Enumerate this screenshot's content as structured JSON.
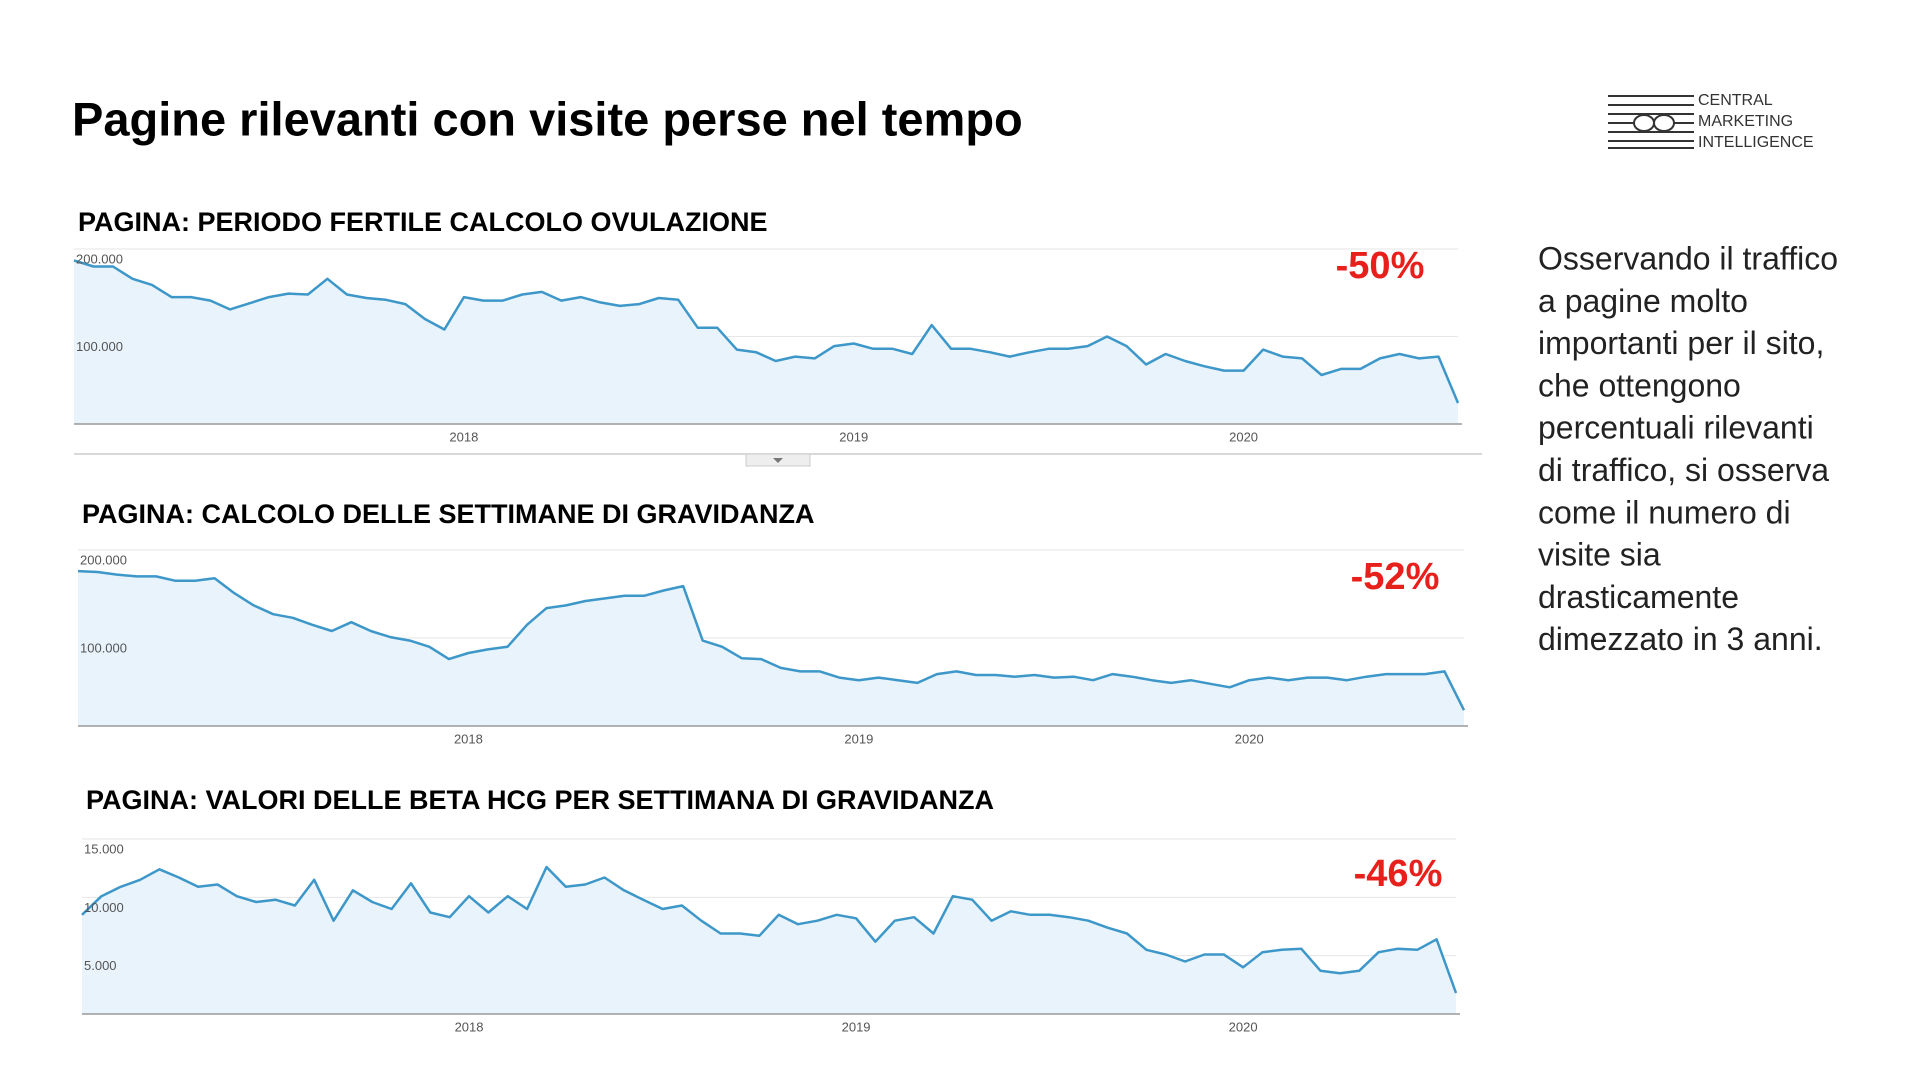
{
  "slide": {
    "title": "Pagine rilevanti con visite perse nel tempo",
    "logo": [
      "CENTRAL",
      "MARKETING",
      "INTELLIGENCE"
    ],
    "body": [
      "Osservando il traffico",
      "a pagine molto",
      "importanti per il sito,",
      "che ottengono",
      "percentuali rilevanti",
      "di traffico, si osserva",
      "come il numero di",
      "visite sia",
      "drasticamente",
      "dimezzato in 3 anni."
    ]
  },
  "chart_data": [
    {
      "type": "line",
      "title": "PAGINA: PERIODO FERTILE CALCOLO OVULAZIONE",
      "annotation": "-50%",
      "color": "#3d97c9",
      "area_color": "#e9f3fb",
      "grid": true,
      "categories": [
        null,
        null,
        null,
        null,
        null,
        null,
        null,
        null,
        null,
        null,
        null,
        null,
        null,
        null,
        null,
        null,
        null,
        null,
        null,
        null,
        "2018",
        null,
        null,
        null,
        null,
        null,
        null,
        null,
        null,
        null,
        null,
        null,
        null,
        null,
        null,
        null,
        null,
        null,
        null,
        null,
        "2019",
        null,
        null,
        null,
        null,
        null,
        null,
        null,
        null,
        null,
        null,
        null,
        null,
        null,
        null,
        null,
        null,
        null,
        null,
        null,
        "2020",
        null,
        null,
        null,
        null,
        null,
        null,
        null,
        null,
        null,
        null,
        null
      ],
      "values": [
        187000,
        180000,
        180000,
        166000,
        159000,
        145000,
        145000,
        141000,
        131000,
        138000,
        145000,
        149000,
        148000,
        166000,
        148000,
        144000,
        142000,
        137000,
        120000,
        108000,
        145000,
        141000,
        141000,
        148000,
        151000,
        141000,
        145000,
        139000,
        135000,
        137000,
        144000,
        142000,
        110000,
        110000,
        85000,
        82000,
        72000,
        77000,
        75000,
        89000,
        92000,
        86000,
        86000,
        80000,
        113000,
        86000,
        86000,
        82000,
        77000,
        82000,
        86000,
        86000,
        89000,
        100000,
        89000,
        68000,
        80000,
        72000,
        66000,
        61000,
        61000,
        85000,
        77000,
        75000,
        56000,
        63000,
        63000,
        75000,
        80000,
        75000,
        77000,
        24000
      ],
      "ylim": [
        0,
        200000
      ],
      "yticks": [
        {
          "value": 100000,
          "label": "100.000"
        },
        {
          "value": 200000,
          "label": "200.000"
        }
      ]
    },
    {
      "type": "line",
      "title": "PAGINA: CALCOLO DELLE SETTIMANE DI GRAVIDANZA",
      "annotation": "-52%",
      "color": "#3d97c9",
      "area_color": "#e9f3fb",
      "grid": true,
      "categories": [
        null,
        null,
        null,
        null,
        null,
        null,
        null,
        null,
        null,
        null,
        null,
        null,
        null,
        null,
        null,
        null,
        null,
        null,
        null,
        null,
        "2018",
        null,
        null,
        null,
        null,
        null,
        null,
        null,
        null,
        null,
        null,
        null,
        null,
        null,
        null,
        null,
        null,
        null,
        null,
        null,
        "2019",
        null,
        null,
        null,
        null,
        null,
        null,
        null,
        null,
        null,
        null,
        null,
        null,
        null,
        null,
        null,
        null,
        null,
        null,
        null,
        "2020",
        null,
        null,
        null,
        null,
        null,
        null,
        null,
        null,
        null,
        null,
        null
      ],
      "values": [
        176000,
        175000,
        172000,
        170000,
        170000,
        165000,
        165000,
        168000,
        151000,
        137000,
        127000,
        123000,
        115000,
        108000,
        118000,
        108000,
        101000,
        97000,
        90000,
        76000,
        83000,
        87000,
        90000,
        115000,
        134000,
        137000,
        142000,
        145000,
        148000,
        148000,
        154000,
        159000,
        97000,
        90000,
        77000,
        76000,
        66000,
        62000,
        62000,
        55000,
        52000,
        55000,
        52000,
        49000,
        59000,
        62000,
        58000,
        58000,
        56000,
        58000,
        55000,
        56000,
        52000,
        59000,
        56000,
        52000,
        49000,
        52000,
        48000,
        44000,
        52000,
        55000,
        52000,
        55000,
        55000,
        52000,
        56000,
        59000,
        59000,
        59000,
        62000,
        18000
      ],
      "ylim": [
        0,
        200000
      ],
      "yticks": [
        {
          "value": 100000,
          "label": "100.000"
        },
        {
          "value": 200000,
          "label": "200.000"
        }
      ]
    },
    {
      "type": "line",
      "title": "PAGINA: VALORI DELLE BETA HCG PER SETTIMANA DI GRAVIDANZA",
      "annotation": "-46%",
      "color": "#3d97c9",
      "area_color": "#e9f3fb",
      "grid": true,
      "categories": [
        null,
        null,
        null,
        null,
        null,
        null,
        null,
        null,
        null,
        null,
        null,
        null,
        null,
        null,
        null,
        null,
        null,
        null,
        null,
        null,
        "2018",
        null,
        null,
        null,
        null,
        null,
        null,
        null,
        null,
        null,
        null,
        null,
        null,
        null,
        null,
        null,
        null,
        null,
        null,
        null,
        "2019",
        null,
        null,
        null,
        null,
        null,
        null,
        null,
        null,
        null,
        null,
        null,
        null,
        null,
        null,
        null,
        null,
        null,
        null,
        null,
        "2020",
        null,
        null,
        null,
        null,
        null,
        null,
        null,
        null,
        null,
        null,
        null
      ],
      "values": [
        8500,
        10100,
        10900,
        11500,
        12400,
        11700,
        10900,
        11100,
        10100,
        9600,
        9800,
        9300,
        11500,
        8000,
        10600,
        9600,
        9000,
        11200,
        8700,
        8300,
        10100,
        8700,
        10100,
        9000,
        12600,
        10900,
        11100,
        11700,
        10600,
        9800,
        9000,
        9300,
        8000,
        6900,
        6900,
        6700,
        8500,
        7700,
        8000,
        8500,
        8200,
        6200,
        8000,
        8300,
        6900,
        10100,
        9800,
        8000,
        8800,
        8500,
        8500,
        8300,
        8000,
        7400,
        6900,
        5500,
        5100,
        4500,
        5100,
        5100,
        4000,
        5300,
        5500,
        5600,
        3700,
        3500,
        3700,
        5300,
        5600,
        5500,
        6400,
        1800
      ],
      "ylim": [
        0,
        15000
      ],
      "yticks": [
        {
          "value": 5000,
          "label": "5.000"
        },
        {
          "value": 10000,
          "label": "10.000"
        },
        {
          "value": 15000,
          "label": "15.000"
        }
      ]
    }
  ]
}
